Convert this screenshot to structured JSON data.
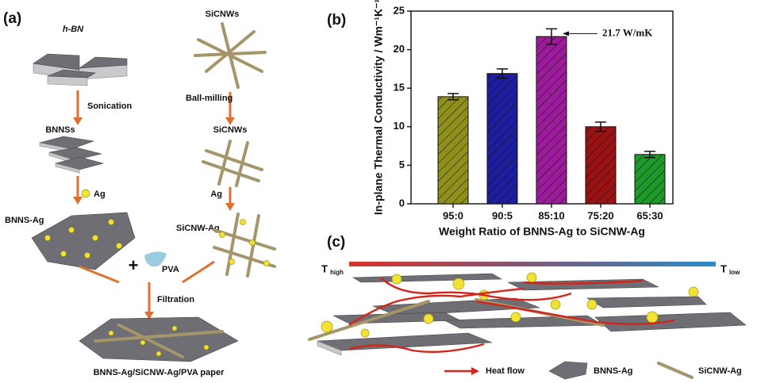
{
  "panel_a": {
    "label": "(a)",
    "hbn": "h-BN",
    "sonication": "Sonication",
    "bnnss": "BNNSs",
    "ag_left": "Ag",
    "bnns_ag": "BNNS-Ag",
    "plus": "+",
    "pva": "PVA",
    "filtration": "Filtration",
    "paper": "BNNS-Ag/SiCNW-Ag/PVA paper",
    "sicnws_top": "SiCNWs",
    "ball_milling": "Ball-milling",
    "sicnws_mid": "SiCNWs",
    "ag_right": "Ag",
    "sicnw_ag": "SiCNW-Ag"
  },
  "chart_data": {
    "type": "bar",
    "panel_label": "(b)",
    "x_label": "Weight Ratio of BNNS-Ag to SiCNW-Ag",
    "y_label": "In-plane Thermal Conductivity  / Wm⁻¹K⁻¹",
    "categories": [
      "95:0",
      "90:5",
      "85:10",
      "75:20",
      "65:30"
    ],
    "values": [
      13.9,
      16.9,
      21.7,
      10.0,
      6.4
    ],
    "errors": [
      0.4,
      0.6,
      1.0,
      0.6,
      0.4
    ],
    "colors": [
      "#8f8f1c",
      "#1d1d9e",
      "#9b1b9b",
      "#9a1212",
      "#1d9a2a"
    ],
    "ylim": [
      0,
      25
    ],
    "yticks": [
      0,
      5,
      10,
      15,
      20,
      25
    ],
    "annotation": {
      "text": "21.7 W/mK",
      "index": 2
    }
  },
  "panel_c": {
    "label": "(c)",
    "t_high": "T",
    "t_high_sub": "high",
    "t_low": "T",
    "t_low_sub": "low",
    "legend_heat": "Heat flow",
    "legend_bnns": "BNNS-Ag",
    "legend_sicnw": "SiCNW-Ag"
  }
}
